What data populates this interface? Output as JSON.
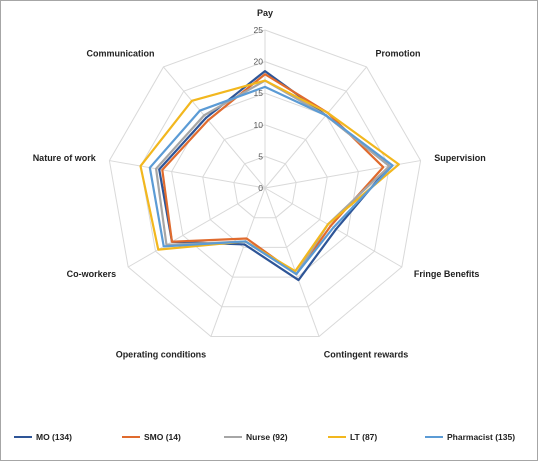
{
  "chart_data": {
    "type": "radar",
    "axes": [
      "Pay",
      "Promotion",
      "Supervision",
      "Fringe Benefits",
      "Contingent rewards",
      "Operating conditions",
      "Co-workers",
      "Nature of work",
      "Communication"
    ],
    "rlim": [
      0,
      25
    ],
    "rticks": [
      "0",
      "5",
      "10",
      "15",
      "20",
      "25"
    ],
    "grid": true,
    "legend_position": "bottom",
    "series": [
      {
        "name": "MO (134)",
        "color": "#2e5597",
        "values": [
          18.5,
          15.0,
          20.0,
          13.0,
          15.5,
          9.5,
          17.0,
          17.0,
          14.5
        ]
      },
      {
        "name": "SMO (14)",
        "color": "#e06b2e",
        "values": [
          18.0,
          15.5,
          19.0,
          12.0,
          14.5,
          8.5,
          17.0,
          16.5,
          14.0
        ]
      },
      {
        "name": "Nurse (92)",
        "color": "#a6a6a6",
        "values": [
          17.0,
          15.0,
          20.0,
          11.5,
          14.5,
          9.0,
          18.0,
          17.5,
          15.0
        ]
      },
      {
        "name": "LT (87)",
        "color": "#f2b71e",
        "values": [
          17.0,
          15.5,
          21.5,
          11.5,
          14.0,
          9.0,
          19.5,
          20.0,
          18.0
        ]
      },
      {
        "name": "Pharmacist (135)",
        "color": "#5b9bd5",
        "values": [
          16.0,
          15.0,
          20.5,
          12.5,
          14.5,
          9.0,
          18.5,
          18.5,
          16.0
        ]
      }
    ]
  }
}
